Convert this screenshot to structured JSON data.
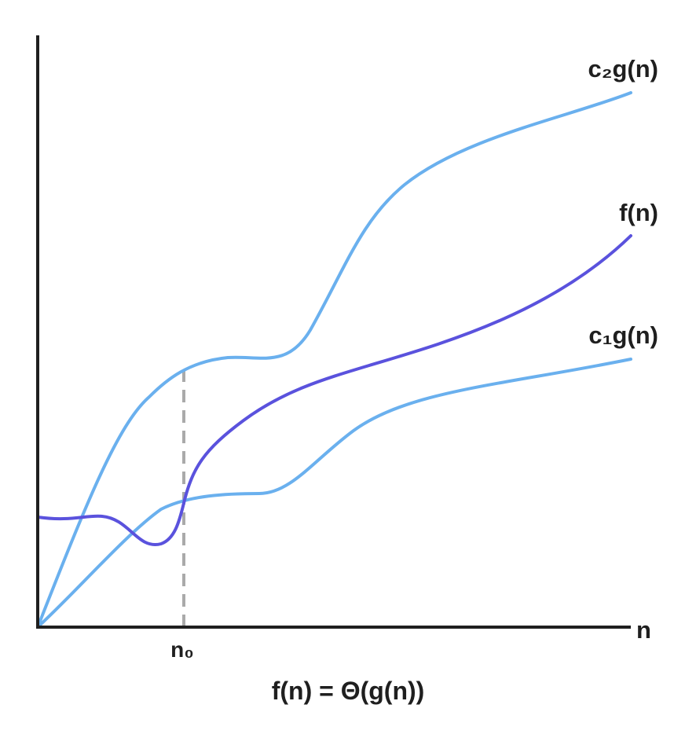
{
  "diagram": {
    "curve_labels": {
      "upper_base": "c",
      "upper_sub": "₂",
      "upper_rest": "g(n)",
      "middle": "f(n)",
      "lower_base": "c",
      "lower_sub": "₁",
      "lower_rest": "g(n)"
    },
    "axis": {
      "x_label": "n",
      "threshold_base": "n",
      "threshold_sub": "₀"
    },
    "caption": "f(n) = Θ(g(n))",
    "colors": {
      "bound_curves": "#6ab0ee",
      "f_curve": "#5a52dd",
      "axes": "#1f1f1f",
      "threshold_line": "#aaaaaa"
    }
  }
}
